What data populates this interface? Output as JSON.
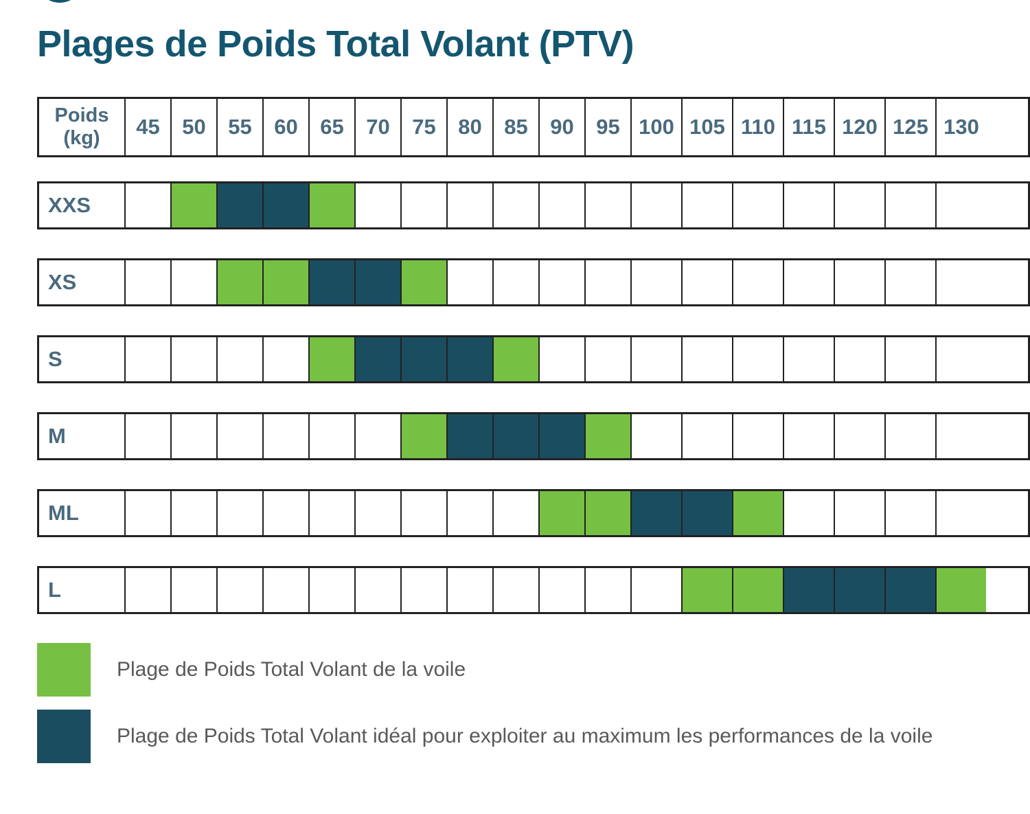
{
  "title": "Plages de Poids Total Volant (PTV)",
  "colors": {
    "title": "#14566F",
    "header_text": "#4A6A7E",
    "legend_text": "#58595B",
    "grid_border": "#222222",
    "ptv": "#76C143",
    "ideal": "#1B4D61"
  },
  "chart_data": {
    "type": "table",
    "title": "Plages de Poids Total Volant (PTV)",
    "corner_label_line1": "Poids",
    "corner_label_line2": "(kg)",
    "columns": [
      "45",
      "50",
      "55",
      "60",
      "65",
      "70",
      "75",
      "80",
      "85",
      "90",
      "95",
      "100",
      "105",
      "110",
      "115",
      "120",
      "125",
      "130"
    ],
    "rows": [
      {
        "label": "XXS",
        "cells": [
          "",
          "ptv",
          "ideal",
          "ideal",
          "ptv",
          "",
          "",
          "",
          "",
          "",
          "",
          "",
          "",
          "",
          "",
          "",
          "",
          ""
        ]
      },
      {
        "label": "XS",
        "cells": [
          "",
          "",
          "ptv",
          "ptv",
          "ideal",
          "ideal",
          "ptv",
          "",
          "",
          "",
          "",
          "",
          "",
          "",
          "",
          "",
          "",
          ""
        ]
      },
      {
        "label": "S",
        "cells": [
          "",
          "",
          "",
          "",
          "ptv",
          "ideal",
          "ideal",
          "ideal",
          "ptv",
          "",
          "",
          "",
          "",
          "",
          "",
          "",
          "",
          ""
        ]
      },
      {
        "label": "M",
        "cells": [
          "",
          "",
          "",
          "",
          "",
          "",
          "ptv",
          "ideal",
          "ideal",
          "ideal",
          "ptv",
          "",
          "",
          "",
          "",
          "",
          "",
          ""
        ]
      },
      {
        "label": "ML",
        "cells": [
          "",
          "",
          "",
          "",
          "",
          "",
          "",
          "",
          "",
          "ptv",
          "ptv",
          "ideal",
          "ideal",
          "ptv",
          "",
          "",
          "",
          ""
        ]
      },
      {
        "label": "L",
        "cells": [
          "",
          "",
          "",
          "",
          "",
          "",
          "",
          "",
          "",
          "",
          "",
          "",
          "ptv",
          "ptv",
          "ideal",
          "ideal",
          "ideal",
          "ptv"
        ]
      }
    ],
    "legend": [
      {
        "key": "ptv",
        "color": "#76C143",
        "label": "Plage de Poids Total Volant de la voile"
      },
      {
        "key": "ideal",
        "color": "#1B4D61",
        "label": "Plage de Poids Total Volant idéal pour exploiter au maximum les performances de la voile"
      }
    ],
    "layout": {
      "grid": "one strip per size row",
      "legend_position": "bottom-left"
    }
  }
}
